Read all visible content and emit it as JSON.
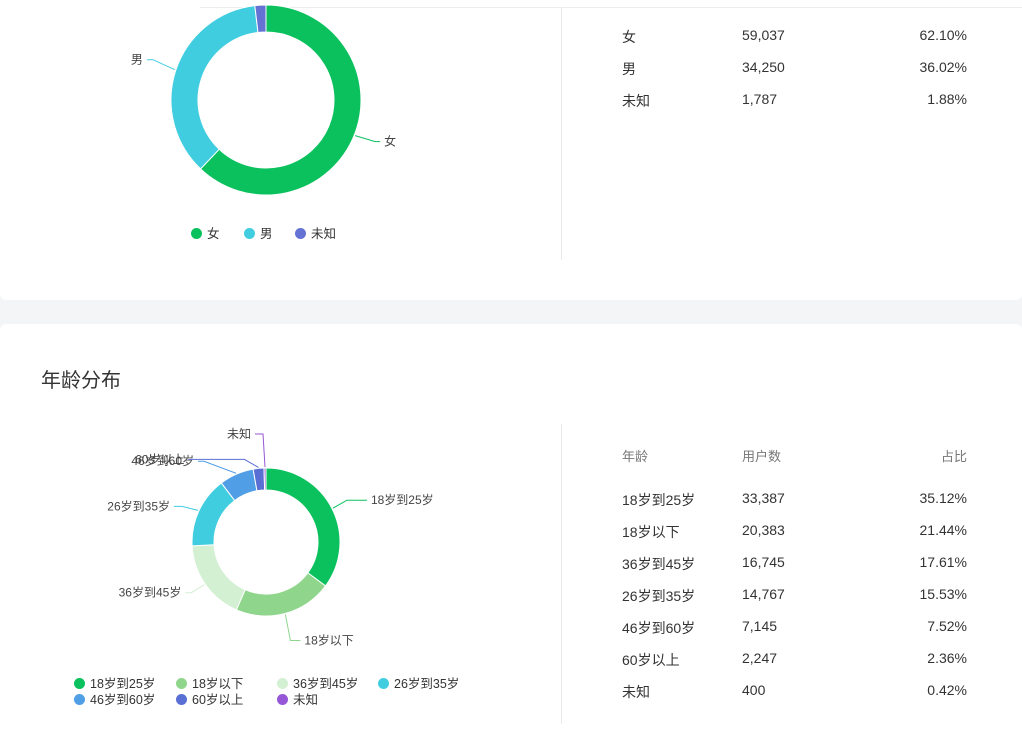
{
  "gender": {
    "legend": [
      "女",
      "男",
      "未知"
    ],
    "rows": [
      {
        "label": "女",
        "count": "59,037",
        "pct": "62.10%"
      },
      {
        "label": "男",
        "count": "34,250",
        "pct": "36.02%"
      },
      {
        "label": "未知",
        "count": "1,787",
        "pct": "1.88%"
      }
    ]
  },
  "age": {
    "title": "年龄分布",
    "headers": {
      "age": "年龄",
      "users": "用户数",
      "ratio": "占比"
    },
    "legend": [
      "18岁到25岁",
      "18岁以下",
      "36岁到45岁",
      "26岁到35岁",
      "46岁到60岁",
      "60岁以上",
      "未知"
    ],
    "rows": [
      {
        "label": "18岁到25岁",
        "count": "33,387",
        "pct": "35.12%"
      },
      {
        "label": "18岁以下",
        "count": "20,383",
        "pct": "21.44%"
      },
      {
        "label": "36岁到45岁",
        "count": "16,745",
        "pct": "17.61%"
      },
      {
        "label": "26岁到35岁",
        "count": "14,767",
        "pct": "15.53%"
      },
      {
        "label": "46岁到60岁",
        "count": "7,145",
        "pct": "7.52%"
      },
      {
        "label": "60岁以上",
        "count": "2,247",
        "pct": "2.36%"
      },
      {
        "label": "未知",
        "count": "400",
        "pct": "0.42%"
      }
    ]
  },
  "chart_data": [
    {
      "type": "pie",
      "categories": [
        "女",
        "男",
        "未知"
      ],
      "values": [
        59037,
        34250,
        1787
      ],
      "percentages": [
        62.1,
        36.02,
        1.88
      ],
      "colors": [
        "#0ac15e",
        "#40cde0",
        "#6372d3"
      ],
      "legend": "bottom"
    },
    {
      "type": "pie",
      "title": "年龄分布",
      "categories": [
        "18岁到25岁",
        "18岁以下",
        "36岁到45岁",
        "26岁到35岁",
        "46岁到60岁",
        "60岁以上",
        "未知"
      ],
      "values": [
        33387,
        20383,
        16745,
        14767,
        7145,
        2247,
        400
      ],
      "percentages": [
        35.12,
        21.44,
        17.61,
        15.53,
        7.52,
        2.36,
        0.42
      ],
      "colors": [
        "#0ac15e",
        "#8fd68c",
        "#d3f0d2",
        "#40cde0",
        "#509fe6",
        "#5a6fd3",
        "#9557d6"
      ],
      "legend": "bottom"
    }
  ]
}
